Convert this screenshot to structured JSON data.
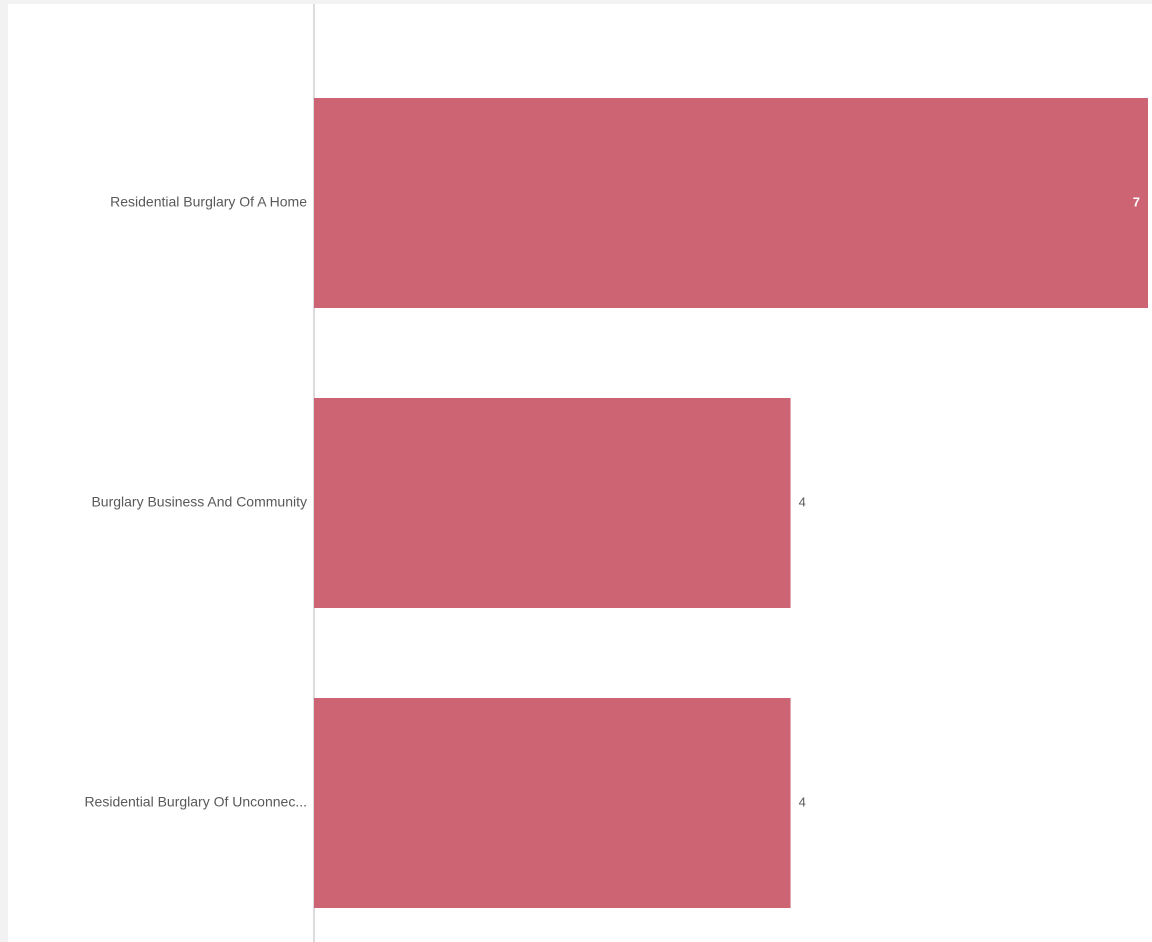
{
  "chart_data": {
    "type": "bar",
    "orientation": "horizontal",
    "categories": [
      "Residential Burglary Of A Home",
      "Burglary Business And Community",
      "Residential Burglary Of Unconnec..."
    ],
    "values": [
      7,
      4,
      4
    ],
    "title": "",
    "xlabel": "",
    "ylabel": "",
    "xlim": [
      0,
      7
    ],
    "grid": false,
    "legend": "none",
    "bar_color": "#cc6473",
    "data_labels": true
  }
}
